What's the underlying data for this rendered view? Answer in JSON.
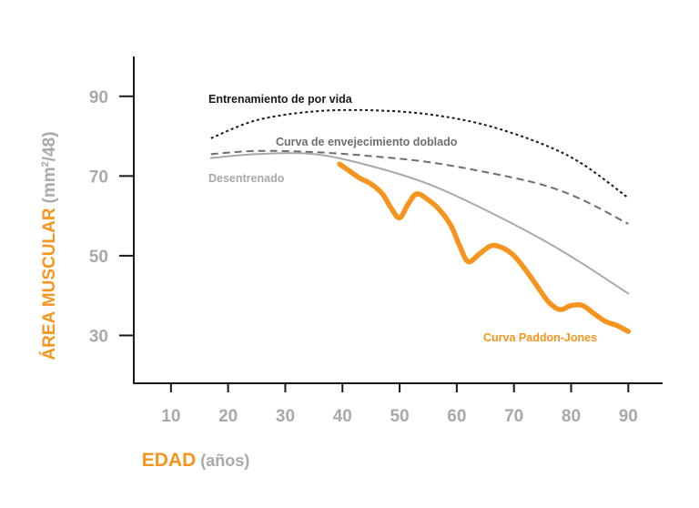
{
  "chart_data": {
    "type": "line",
    "xlabel": {
      "main": "EDAD",
      "suffix": "(años)"
    },
    "ylabel": {
      "main": "ÁREA MUSCULAR",
      "suffix_pre": "(mm",
      "suffix_sup": "2",
      "suffix_post": "/48)"
    },
    "x_ticks": [
      "10",
      "20",
      "30",
      "40",
      "50",
      "60",
      "70",
      "80",
      "90"
    ],
    "y_ticks": [
      "90",
      "70",
      "50",
      "30"
    ],
    "xlim": [
      3.5,
      96
    ],
    "ylim": [
      18,
      100
    ],
    "grid": false,
    "colors": {
      "axis": "#1a1a1a",
      "tick": "#a7a9ac",
      "accent": "#f7941d",
      "grey_text": "#a7a9ac"
    },
    "series": [
      {
        "name": "Entrenamiento de por vida",
        "style": "dotted",
        "color": "#1a1a1a",
        "x": [
          17,
          25,
          35,
          45,
          55,
          65,
          75,
          82,
          90
        ],
        "y": [
          79.5,
          84,
          86.2,
          86.5,
          85.5,
          82.8,
          78,
          73,
          64.5
        ]
      },
      {
        "name": "Curva de envejecimiento doblado",
        "style": "dashed",
        "color": "#6d6e71",
        "x": [
          17,
          25,
          35,
          45,
          55,
          65,
          75,
          82,
          90
        ],
        "y": [
          75.5,
          76.3,
          76,
          75,
          73.5,
          71,
          67.8,
          64,
          58
        ]
      },
      {
        "name": "Desentrenado",
        "style": "solid",
        "color": "#a7a9ac",
        "x": [
          17,
          25,
          35,
          45,
          55,
          65,
          75,
          82,
          90
        ],
        "y": [
          74.5,
          75.5,
          75.5,
          72.5,
          68,
          61.5,
          54,
          48,
          40.5
        ]
      },
      {
        "name": "Curva Paddon-Jones",
        "style": "solid-thick",
        "color": "#f7941d",
        "x": [
          39.5,
          41,
          43,
          45,
          47,
          48.5,
          50,
          51.5,
          53,
          55,
          57,
          59,
          60.5,
          62,
          64,
          66,
          68,
          70,
          72,
          74,
          76,
          78,
          80,
          82,
          84,
          86,
          88,
          90
        ],
        "y": [
          73,
          71.5,
          69.5,
          68,
          65.5,
          62,
          59.5,
          63,
          65.5,
          64,
          61.5,
          57.5,
          52.5,
          48.5,
          50.5,
          52.5,
          52,
          50,
          46.5,
          42.5,
          38.5,
          36.5,
          37.5,
          37.5,
          35.5,
          33.5,
          32.5,
          31
        ]
      }
    ],
    "annotations": [
      {
        "text": "Entrenamiento de por vida",
        "series": 0
      },
      {
        "text": "Curva de envejecimiento doblado",
        "series": 1
      },
      {
        "text": "Desentrenado",
        "series": 2
      },
      {
        "text": "Curva Paddon-Jones",
        "series": 3
      }
    ]
  }
}
